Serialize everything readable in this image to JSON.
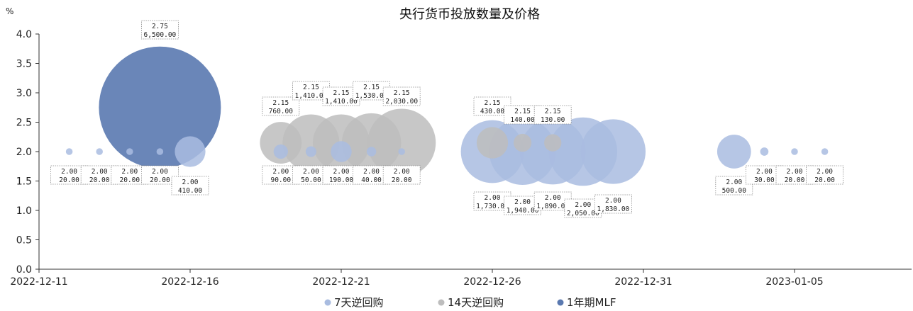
{
  "chart_data": {
    "type": "bubble",
    "title": "央行货币投放数量及价格",
    "ylabel": "%",
    "xlabel": "",
    "ylim": [
      0,
      4.0
    ],
    "yticks": [
      "0.0",
      "0.5",
      "1.0",
      "1.5",
      "2.0",
      "2.5",
      "3.0",
      "3.5",
      "4.0"
    ],
    "xlim": [
      "2022-12-11",
      "2023-01-09"
    ],
    "xticks": [
      "2022-12-11",
      "2022-12-16",
      "2022-12-21",
      "2022-12-26",
      "2022-12-31",
      "2023-01-05"
    ],
    "legend": "bottom",
    "grid": false,
    "series": [
      {
        "name": "7天逆回购",
        "color": "#a9bce0",
        "points": [
          {
            "date": "2022-12-12",
            "rate": 2.0,
            "rate_label": "2.00",
            "amount": 20,
            "amount_label": "20.00"
          },
          {
            "date": "2022-12-13",
            "rate": 2.0,
            "rate_label": "2.00",
            "amount": 20,
            "amount_label": "20.00"
          },
          {
            "date": "2022-12-14",
            "rate": 2.0,
            "rate_label": "2.00",
            "amount": 20,
            "amount_label": "20.00"
          },
          {
            "date": "2022-12-15",
            "rate": 2.0,
            "rate_label": "2.00",
            "amount": 20,
            "amount_label": "20.00"
          },
          {
            "date": "2022-12-16",
            "rate": 2.0,
            "rate_label": "2.00",
            "amount": 410,
            "amount_label": "410.00"
          },
          {
            "date": "2022-12-19",
            "rate": 2.0,
            "rate_label": "2.00",
            "amount": 90,
            "amount_label": "90.00"
          },
          {
            "date": "2022-12-20",
            "rate": 2.0,
            "rate_label": "2.00",
            "amount": 50,
            "amount_label": "50.00"
          },
          {
            "date": "2022-12-21",
            "rate": 2.0,
            "rate_label": "2.00",
            "amount": 190,
            "amount_label": "190.00"
          },
          {
            "date": "2022-12-22",
            "rate": 2.0,
            "rate_label": "2.00",
            "amount": 40,
            "amount_label": "40.00"
          },
          {
            "date": "2022-12-23",
            "rate": 2.0,
            "rate_label": "2.00",
            "amount": 20,
            "amount_label": "20.00"
          },
          {
            "date": "2022-12-26",
            "rate": 2.0,
            "rate_label": "2.00",
            "amount": 1730,
            "amount_label": "1,730.00"
          },
          {
            "date": "2022-12-27",
            "rate": 2.0,
            "rate_label": "2.00",
            "amount": 1940,
            "amount_label": "1,940.00"
          },
          {
            "date": "2022-12-28",
            "rate": 2.0,
            "rate_label": "2.00",
            "amount": 1890,
            "amount_label": "1,890.00"
          },
          {
            "date": "2022-12-29",
            "rate": 2.0,
            "rate_label": "2.00",
            "amount": 2050,
            "amount_label": "2,050.00"
          },
          {
            "date": "2022-12-30",
            "rate": 2.0,
            "rate_label": "2.00",
            "amount": 1830,
            "amount_label": "1,830.00"
          },
          {
            "date": "2023-01-03",
            "rate": 2.0,
            "rate_label": "2.00",
            "amount": 500,
            "amount_label": "500.00"
          },
          {
            "date": "2023-01-04",
            "rate": 2.0,
            "rate_label": "2.00",
            "amount": 30,
            "amount_label": "30.00"
          },
          {
            "date": "2023-01-05",
            "rate": 2.0,
            "rate_label": "2.00",
            "amount": 20,
            "amount_label": "20.00"
          },
          {
            "date": "2023-01-06",
            "rate": 2.0,
            "rate_label": "2.00",
            "amount": 20,
            "amount_label": "20.00"
          }
        ]
      },
      {
        "name": "14天逆回购",
        "color": "#bdbdbd",
        "points": [
          {
            "date": "2022-12-19",
            "rate": 2.15,
            "rate_label": "2.15",
            "amount": 760,
            "amount_label": "760.00"
          },
          {
            "date": "2022-12-20",
            "rate": 2.15,
            "rate_label": "2.15",
            "amount": 1410,
            "amount_label": "1,410.00"
          },
          {
            "date": "2022-12-21",
            "rate": 2.15,
            "rate_label": "2.15",
            "amount": 1410,
            "amount_label": "1,410.00"
          },
          {
            "date": "2022-12-22",
            "rate": 2.15,
            "rate_label": "2.15",
            "amount": 1530,
            "amount_label": "1,530.00"
          },
          {
            "date": "2022-12-23",
            "rate": 2.15,
            "rate_label": "2.15",
            "amount": 2030,
            "amount_label": "2,030.00"
          },
          {
            "date": "2022-12-26",
            "rate": 2.15,
            "rate_label": "2.15",
            "amount": 430,
            "amount_label": "430.00"
          },
          {
            "date": "2022-12-27",
            "rate": 2.15,
            "rate_label": "2.15",
            "amount": 140,
            "amount_label": "140.00"
          },
          {
            "date": "2022-12-28",
            "rate": 2.15,
            "rate_label": "2.15",
            "amount": 130,
            "amount_label": "130.00"
          }
        ]
      },
      {
        "name": "1年期MLF",
        "color": "#5a79b0",
        "points": [
          {
            "date": "2022-12-15",
            "rate": 2.75,
            "rate_label": "2.75",
            "amount": 6500,
            "amount_label": "6,500.00"
          }
        ]
      }
    ]
  }
}
